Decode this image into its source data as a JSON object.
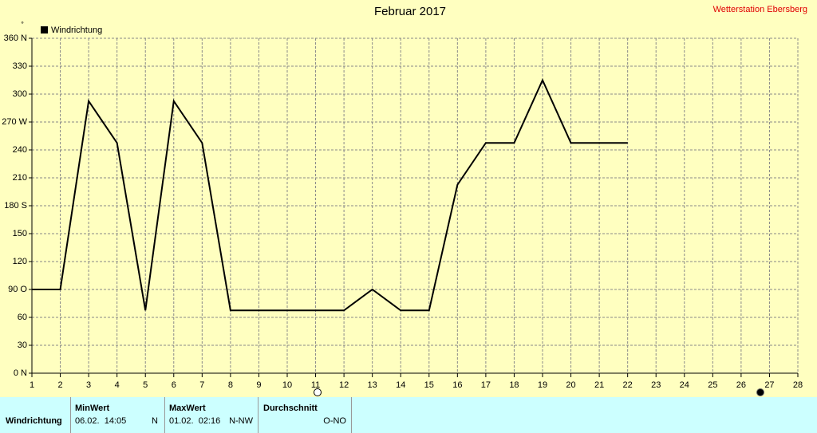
{
  "chart_data": {
    "type": "line",
    "title": "Februar 2017",
    "station": "Wetterstation Ebersberg",
    "y_unit": "°",
    "x": [
      1,
      2,
      3,
      4,
      5,
      6,
      7,
      8,
      9,
      10,
      11,
      12,
      13,
      14,
      15,
      16,
      17,
      18,
      19,
      20,
      21,
      22
    ],
    "series": [
      {
        "name": "Windrichtung",
        "color": "#000000",
        "values": [
          90,
          90,
          292.5,
          247.5,
          67.5,
          292.5,
          247.5,
          67.5,
          67.5,
          67.5,
          67.5,
          67.5,
          90,
          67.5,
          67.5,
          202.5,
          247.5,
          247.5,
          315,
          247.5,
          247.5,
          247.5
        ]
      }
    ],
    "xlim": [
      1,
      28
    ],
    "xticks": [
      1,
      2,
      3,
      4,
      5,
      6,
      7,
      8,
      9,
      10,
      11,
      12,
      13,
      14,
      15,
      16,
      17,
      18,
      19,
      20,
      21,
      22,
      23,
      24,
      25,
      26,
      27,
      28
    ],
    "ylim": [
      0,
      360
    ],
    "yticks": [
      {
        "value": 0,
        "label": "0 N"
      },
      30,
      60,
      {
        "value": 90,
        "label": "90 O"
      },
      120,
      150,
      {
        "value": 180,
        "label": "180 S"
      },
      210,
      240,
      {
        "value": 270,
        "label": "270 W"
      },
      300,
      330,
      {
        "value": 360,
        "label": "360 N"
      }
    ],
    "grid": true
  },
  "stats": {
    "row_label": "Windrichtung",
    "min": {
      "header": "MinWert",
      "time": "06.02.  14:05",
      "direction": "N"
    },
    "max": {
      "header": "MaxWert",
      "time": "01.02.  02:16",
      "direction": "N-NW"
    },
    "avg": {
      "header": "Durchschnitt",
      "direction": "O-NO"
    }
  }
}
